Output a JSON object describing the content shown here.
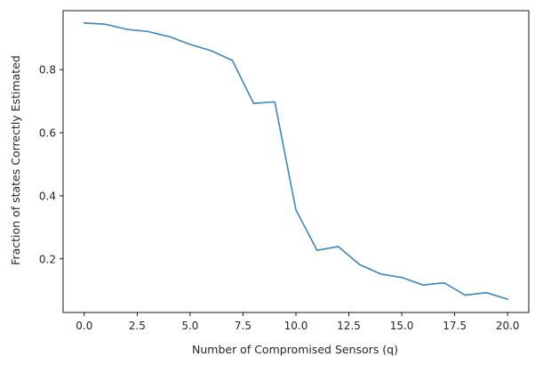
{
  "chart_data": {
    "type": "line",
    "title": "",
    "xlabel": "Number of Compromised Sensors (q)",
    "ylabel": "Fraction of states Correctly Estimated",
    "xlim": [
      -1,
      21
    ],
    "ylim": [
      0.03,
      0.987
    ],
    "xticks": [
      0.0,
      2.5,
      5.0,
      7.5,
      10.0,
      12.5,
      15.0,
      17.5,
      20.0
    ],
    "xtick_labels": [
      "0.0",
      "2.5",
      "5.0",
      "7.5",
      "10.0",
      "12.5",
      "15.0",
      "17.5",
      "20.0"
    ],
    "yticks": [
      0.2,
      0.4,
      0.6,
      0.8
    ],
    "ytick_labels": [
      "0.2",
      "0.4",
      "0.6",
      "0.8"
    ],
    "grid": false,
    "series": [
      {
        "color": "#3a87c2",
        "x": [
          0,
          1,
          2,
          3,
          4,
          5,
          6,
          7,
          8,
          9,
          10,
          11,
          12,
          13,
          14,
          15,
          16,
          17,
          18,
          19,
          20
        ],
        "y": [
          0.948,
          0.944,
          0.928,
          0.921,
          0.905,
          0.88,
          0.86,
          0.829,
          0.693,
          0.698,
          0.355,
          0.227,
          0.239,
          0.182,
          0.152,
          0.141,
          0.117,
          0.124,
          0.085,
          0.093,
          0.072
        ]
      }
    ]
  }
}
